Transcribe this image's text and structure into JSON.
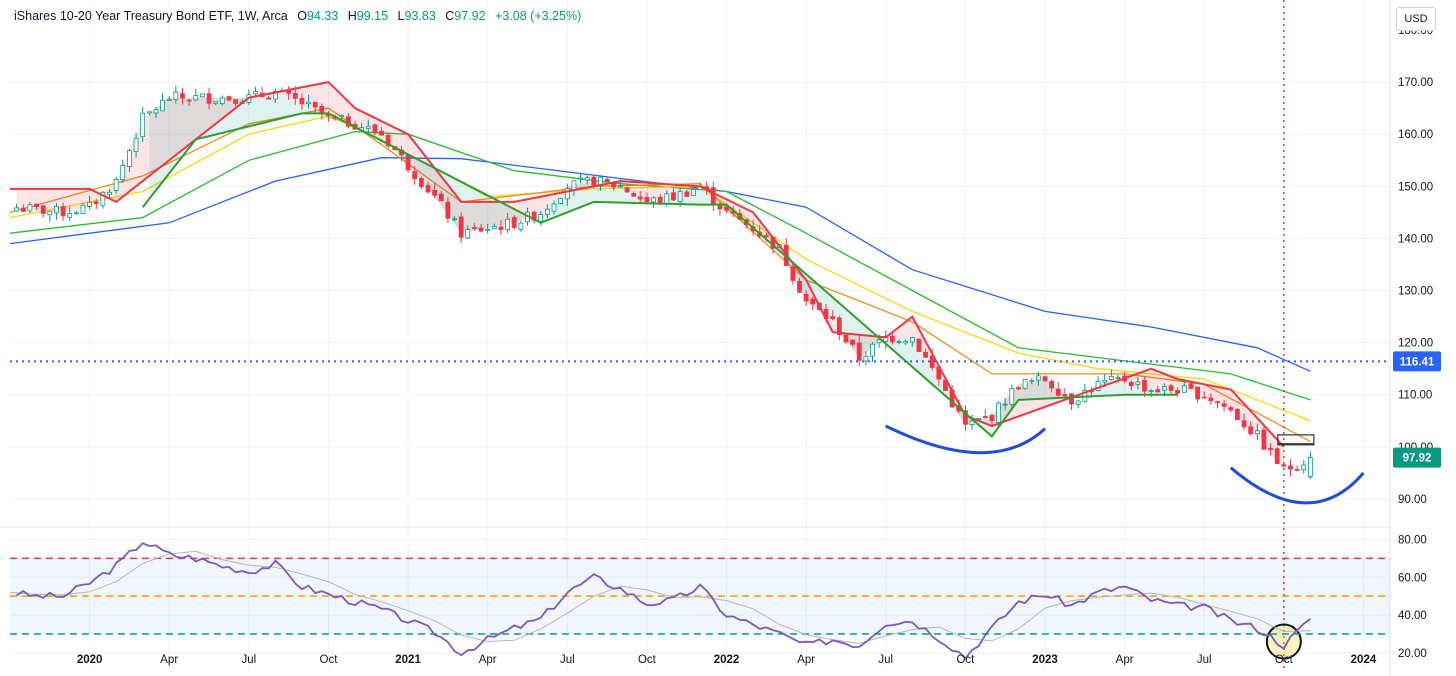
{
  "legend": {
    "title": "iShares 10-20 Year Treasury Bond ETF, 1W, Arca",
    "open_label": "O",
    "open": "94.33",
    "high_label": "H",
    "high": "99.15",
    "low_label": "L",
    "low": "93.83",
    "close_label": "C",
    "close": "97.92",
    "change": "+3.08 (+3.25%)"
  },
  "currency": "USD",
  "colors": {
    "up": "#089981",
    "down": "#f23645",
    "rsi": "#7e57c2",
    "ref_line": "#2962ff",
    "arc": "#1e4fd6",
    "ma_blue": "#2962ff",
    "ma_green": "#2dbb2d",
    "ma_yellow": "#f5d90a",
    "ma_orange": "#f28c1a"
  },
  "chart_data": [
    {
      "type": "candlestick",
      "ylim": [
        85,
        180
      ],
      "y_ticks": [
        "170.00",
        "160.00",
        "150.00",
        "140.00",
        "130.00",
        "120.00",
        "110.00",
        "100.00",
        "90.00"
      ],
      "y_tick_values": [
        170,
        160,
        150,
        140,
        130,
        120,
        110,
        100,
        90
      ],
      "top_partial_tick": "180.00",
      "x_ticks": [
        "2020",
        "Apr",
        "Jul",
        "Oct",
        "2021",
        "Apr",
        "Jul",
        "Oct",
        "2022",
        "Apr",
        "Jul",
        "Oct",
        "2023",
        "Apr",
        "Jul",
        "Oct",
        "2024"
      ],
      "x_tick_dates": [
        "2020-01",
        "2020-04",
        "2020-07",
        "2020-10",
        "2021-01",
        "2021-04",
        "2021-07",
        "2021-10",
        "2022-01",
        "2022-04",
        "2022-07",
        "2022-10",
        "2023-01",
        "2023-04",
        "2023-07",
        "2023-10",
        "2024-01"
      ],
      "x_range": [
        "2019-10",
        "2024-02"
      ],
      "price_path": [
        [
          "2019-10",
          146
        ],
        [
          "2019-12",
          145
        ],
        [
          "2020-01",
          146
        ],
        [
          "2020-02",
          151
        ],
        [
          "2020-03",
          163
        ],
        [
          "2020-04",
          167
        ],
        [
          "2020-05",
          167
        ],
        [
          "2020-07",
          167
        ],
        [
          "2020-08",
          168
        ],
        [
          "2020-09",
          166
        ],
        [
          "2020-10",
          163
        ],
        [
          "2020-11",
          162
        ],
        [
          "2020-12",
          160
        ],
        [
          "2021-01",
          154
        ],
        [
          "2021-02",
          148
        ],
        [
          "2021-03",
          141
        ],
        [
          "2021-04",
          142
        ],
        [
          "2021-05",
          143
        ],
        [
          "2021-06",
          145
        ],
        [
          "2021-07",
          150
        ],
        [
          "2021-08",
          151
        ],
        [
          "2021-09",
          150
        ],
        [
          "2021-10",
          147
        ],
        [
          "2021-11",
          148
        ],
        [
          "2021-12",
          150
        ],
        [
          "2022-01",
          145
        ],
        [
          "2022-02",
          142
        ],
        [
          "2022-03",
          138
        ],
        [
          "2022-04",
          128
        ],
        [
          "2022-05",
          124
        ],
        [
          "2022-06",
          117
        ],
        [
          "2022-07",
          121
        ],
        [
          "2022-08",
          121
        ],
        [
          "2022-09",
          113
        ],
        [
          "2022-10",
          104
        ],
        [
          "2022-11",
          106
        ],
        [
          "2022-12",
          112
        ],
        [
          "2023-01",
          113
        ],
        [
          "2023-02",
          109
        ],
        [
          "2023-03",
          112
        ],
        [
          "2023-04",
          113
        ],
        [
          "2023-05",
          111
        ],
        [
          "2023-06",
          111
        ],
        [
          "2023-07",
          110
        ],
        [
          "2023-08",
          107
        ],
        [
          "2023-09",
          102
        ],
        [
          "2023-10",
          95.5
        ],
        [
          "2023-11",
          97.9
        ]
      ],
      "overlay_lines": [
        {
          "color": "blue",
          "path": [
            [
              "2019-10",
              139
            ],
            [
              "2020-04",
              143
            ],
            [
              "2020-08",
              151
            ],
            [
              "2020-12",
              155.5
            ],
            [
              "2021-03",
              155.3
            ],
            [
              "2021-09",
              151.5
            ],
            [
              "2022-01",
              149
            ],
            [
              "2022-04",
              146
            ],
            [
              "2022-08",
              134
            ],
            [
              "2023-01",
              126
            ],
            [
              "2023-05",
              123
            ],
            [
              "2023-09",
              119
            ],
            [
              "2023-11",
              114.5
            ]
          ]
        },
        {
          "color": "green",
          "path": [
            [
              "2019-10",
              141
            ],
            [
              "2020-03",
              144
            ],
            [
              "2020-07",
              155
            ],
            [
              "2020-11",
              160.5
            ],
            [
              "2021-01",
              160
            ],
            [
              "2021-05",
              153
            ],
            [
              "2021-09",
              150.5
            ],
            [
              "2022-01",
              149
            ],
            [
              "2022-04",
              141
            ],
            [
              "2022-08",
              130
            ],
            [
              "2022-12",
              119
            ],
            [
              "2023-04",
              116.5
            ],
            [
              "2023-08",
              114
            ],
            [
              "2023-11",
              109
            ]
          ]
        },
        {
          "color": "yellow",
          "path": [
            [
              "2019-10",
              144
            ],
            [
              "2020-03",
              149
            ],
            [
              "2020-07",
              160
            ],
            [
              "2020-10",
              163.5
            ],
            [
              "2020-12",
              159
            ],
            [
              "2021-04",
              148
            ],
            [
              "2021-08",
              149.5
            ],
            [
              "2021-12",
              150
            ],
            [
              "2022-04",
              136
            ],
            [
              "2022-08",
              126
            ],
            [
              "2022-12",
              118
            ],
            [
              "2023-03",
              115
            ],
            [
              "2023-07",
              113
            ],
            [
              "2023-11",
              105
            ]
          ]
        },
        {
          "color": "orange",
          "path": [
            [
              "2019-10",
              145
            ],
            [
              "2020-03",
              152
            ],
            [
              "2020-07",
              162
            ],
            [
              "2020-10",
              165
            ],
            [
              "2020-12",
              158
            ],
            [
              "2021-03",
              147
            ],
            [
              "2021-08",
              150
            ],
            [
              "2021-12",
              150.5
            ],
            [
              "2022-04",
              132
            ],
            [
              "2022-08",
              124
            ],
            [
              "2022-11",
              114
            ],
            [
              "2023-01",
              114
            ],
            [
              "2023-04",
              114
            ],
            [
              "2023-07",
              112
            ],
            [
              "2023-11",
              101
            ]
          ]
        }
      ],
      "stop_line_red": [
        [
          "2019-10",
          149.5
        ],
        [
          "2020-01",
          149.5
        ],
        [
          "2020-02",
          147
        ],
        [
          "2020-07",
          167
        ],
        [
          "2020-10",
          170
        ],
        [
          "2020-11",
          165
        ],
        [
          "2021-01",
          160
        ],
        [
          "2021-03",
          147
        ],
        [
          "2021-05",
          147
        ],
        [
          "2021-09",
          151
        ],
        [
          "2021-12",
          150
        ],
        [
          "2022-02",
          145
        ],
        [
          "2022-04",
          132
        ],
        [
          "2022-05",
          122
        ],
        [
          "2022-07",
          121
        ],
        [
          "2022-08",
          125
        ],
        [
          "2022-10",
          106
        ],
        [
          "2022-11",
          104
        ],
        [
          "2023-05",
          115
        ],
        [
          "2023-06",
          113
        ],
        [
          "2023-08",
          111
        ],
        [
          "2023-10",
          100
        ]
      ],
      "stop_line_green": [
        [
          "2020-03",
          146
        ],
        [
          "2020-05",
          159
        ],
        [
          "2020-09",
          164
        ],
        [
          "2020-10",
          164
        ],
        [
          "2021-06",
          143
        ],
        [
          "2021-08",
          147
        ],
        [
          "2021-12",
          146.5
        ],
        [
          "2022-01",
          146.5
        ],
        [
          "2022-11",
          102
        ],
        [
          "2022-12",
          109
        ],
        [
          "2023-04",
          110
        ],
        [
          "2023-06",
          110
        ]
      ],
      "reference_line": {
        "value": 116.41,
        "label": "116.41"
      },
      "last_price": {
        "value": 97.92,
        "label": "97.92"
      },
      "annotations": [
        "two hand-drawn blue arcs below the Oct 2022 and Oct 2023 lows",
        "red dotted vertical line at Oct 2023"
      ]
    },
    {
      "type": "line",
      "name": "RSI",
      "ylim": [
        12,
        85
      ],
      "y_ticks": [
        "80.00",
        "60.00",
        "40.00",
        "20.00"
      ],
      "y_tick_values": [
        80,
        60,
        40,
        20
      ],
      "levels": [
        {
          "value": 70,
          "color": "#f23645"
        },
        {
          "value": 50,
          "color": "#ff9800"
        },
        {
          "value": 30,
          "color": "#089981"
        }
      ],
      "band": [
        30,
        70
      ],
      "rsi": [
        [
          "2019-10",
          52
        ],
        [
          "2019-11",
          50
        ],
        [
          "2019-12",
          50
        ],
        [
          "2020-01",
          57
        ],
        [
          "2020-02",
          66
        ],
        [
          "2020-03",
          79
        ],
        [
          "2020-04",
          72
        ],
        [
          "2020-05",
          70
        ],
        [
          "2020-06",
          66
        ],
        [
          "2020-07",
          63
        ],
        [
          "2020-08",
          67
        ],
        [
          "2020-09",
          55
        ],
        [
          "2020-10",
          51
        ],
        [
          "2020-11",
          47
        ],
        [
          "2020-12",
          43
        ],
        [
          "2021-01",
          37
        ],
        [
          "2021-02",
          31
        ],
        [
          "2021-03",
          20
        ],
        [
          "2021-04",
          27
        ],
        [
          "2021-05",
          33
        ],
        [
          "2021-06",
          38
        ],
        [
          "2021-07",
          52
        ],
        [
          "2021-08",
          60
        ],
        [
          "2021-09",
          54
        ],
        [
          "2021-10",
          46
        ],
        [
          "2021-11",
          48
        ],
        [
          "2021-12",
          55
        ],
        [
          "2022-01",
          40
        ],
        [
          "2022-02",
          35
        ],
        [
          "2022-03",
          30
        ],
        [
          "2022-04",
          24
        ],
        [
          "2022-05",
          27
        ],
        [
          "2022-06",
          24
        ],
        [
          "2022-07",
          36
        ],
        [
          "2022-08",
          37
        ],
        [
          "2022-09",
          28
        ],
        [
          "2022-10",
          18
        ],
        [
          "2022-11",
          33
        ],
        [
          "2022-12",
          47
        ],
        [
          "2023-01",
          51
        ],
        [
          "2023-02",
          45
        ],
        [
          "2023-03",
          52
        ],
        [
          "2023-04",
          55
        ],
        [
          "2023-05",
          48
        ],
        [
          "2023-06",
          45
        ],
        [
          "2023-07",
          44
        ],
        [
          "2023-08",
          37
        ],
        [
          "2023-09",
          33
        ],
        [
          "2023-10",
          24
        ],
        [
          "2023-11",
          38
        ]
      ]
    }
  ]
}
